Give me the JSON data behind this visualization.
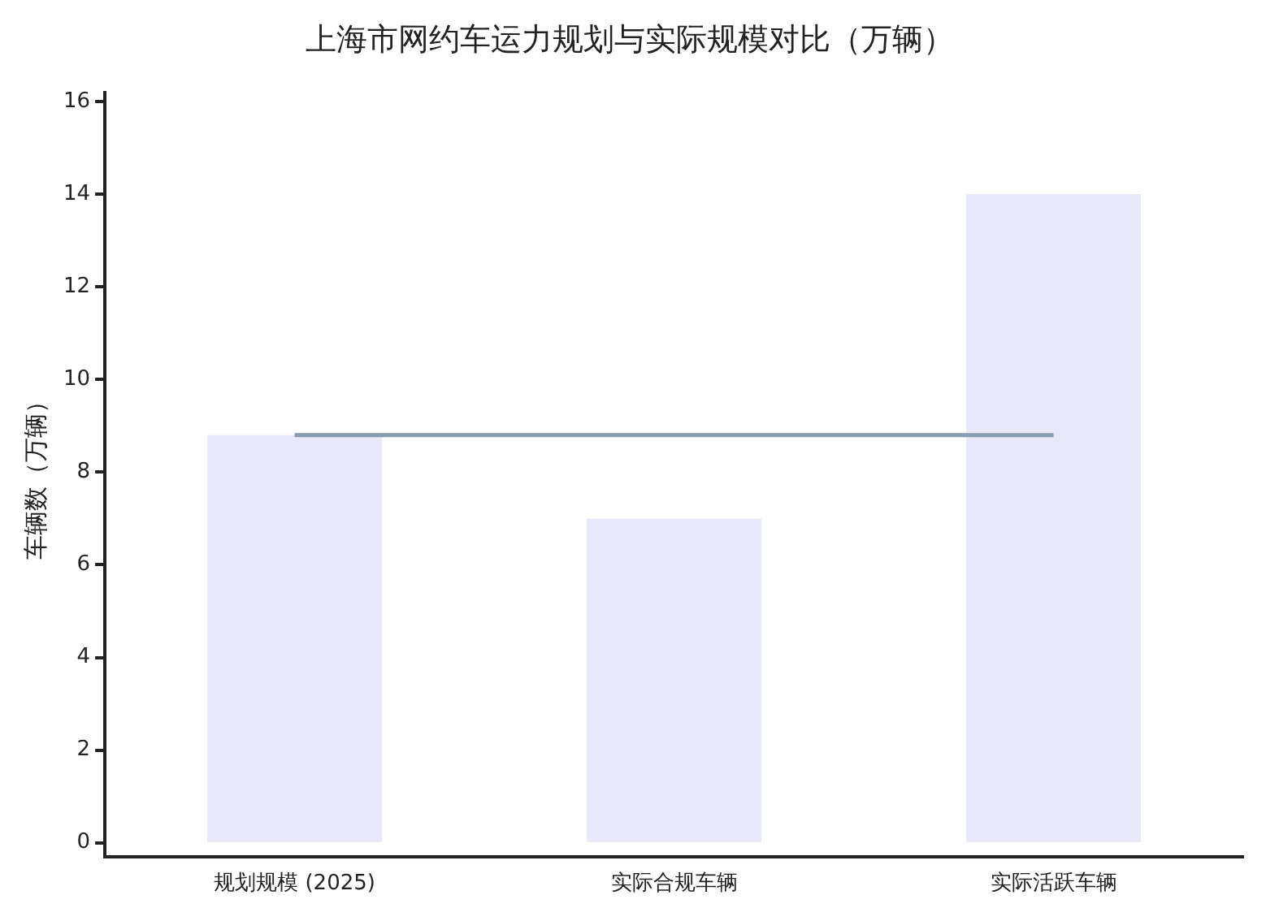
{
  "chart_data": {
    "type": "bar",
    "title": "上海市网约车运力规划与实际规模对比（万辆）",
    "ylabel": "车辆数（万辆）",
    "categories": [
      "规划规模 (2025)",
      "实际合规车辆",
      "实际活跃车辆"
    ],
    "series": [
      {
        "color": "#e8e8fa",
        "values": [
          8.8,
          7,
          14
        ]
      },
      {
        "type": "line",
        "color": "#8a9ab2",
        "values": [
          8.8,
          8.8,
          8.8
        ]
      }
    ],
    "ylim": [
      -0.3,
      16.2
    ],
    "yticks": [
      0,
      2,
      4,
      6,
      8,
      10,
      12,
      14,
      16
    ],
    "grid": false,
    "legend": false,
    "marker": "none"
  }
}
